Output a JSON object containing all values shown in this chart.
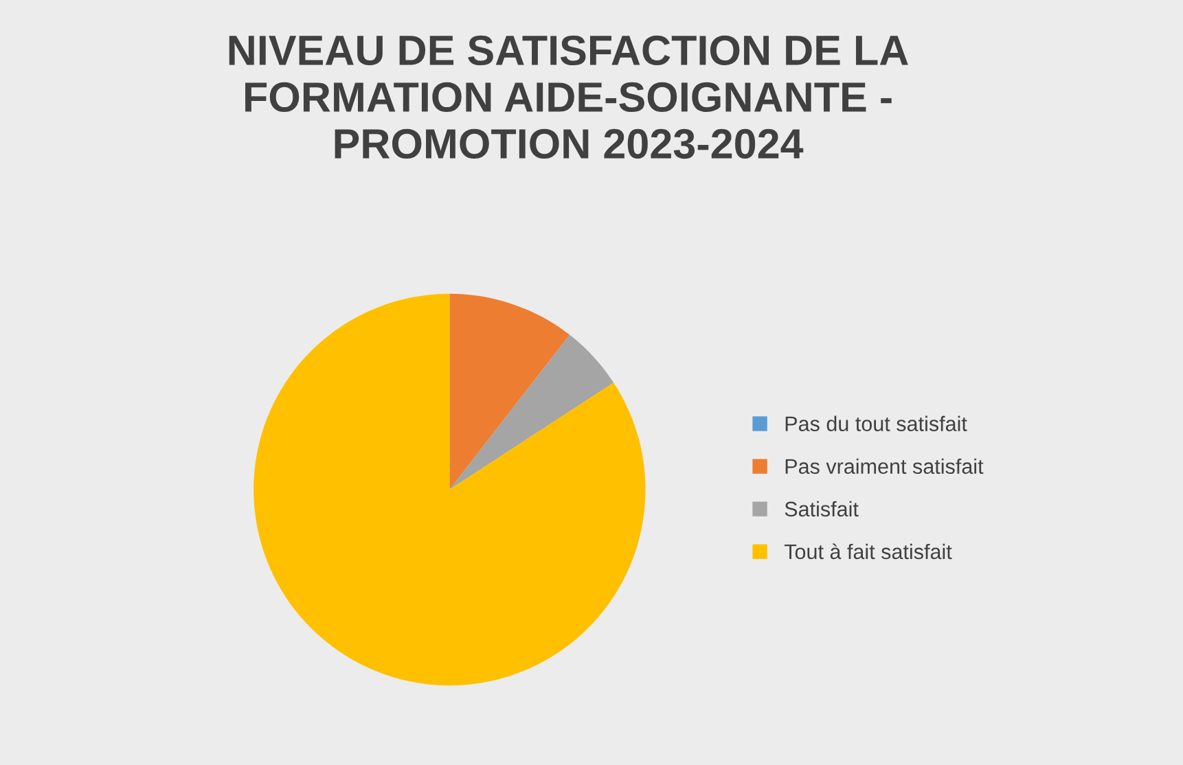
{
  "chart_data": {
    "type": "pie",
    "title": "NIVEAU DE SATISFACTION DE LA\nFORMATION AIDE-SOIGNANTE -\nPROMOTION 2023-2024",
    "categories": [
      "Pas du tout satisfait",
      "Pas vraiment satisfait",
      "Satisfait",
      "Tout à fait satisfait"
    ],
    "values": [
      0,
      10.5,
      5.3,
      84.2
    ],
    "colors": [
      "#5b9bd5",
      "#ed7d31",
      "#a5a5a5",
      "#ffc000"
    ],
    "legend": "right"
  }
}
